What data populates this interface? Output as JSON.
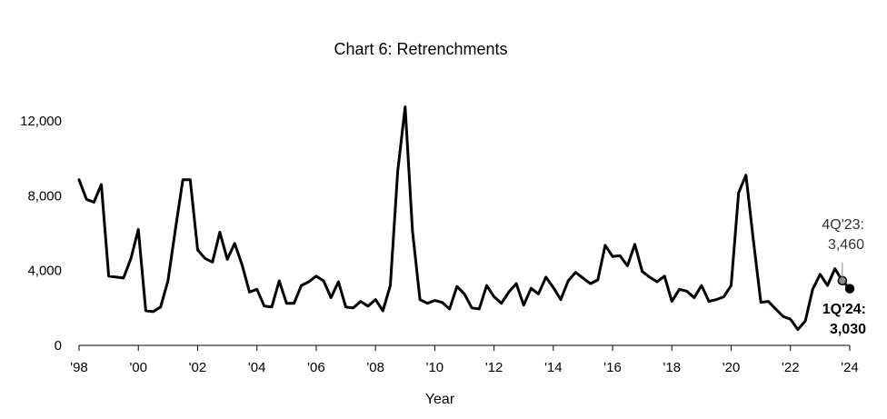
{
  "chart_data": {
    "type": "line",
    "title": "Chart 6: Retrenchments",
    "xlabel": "Year",
    "ylabel": "",
    "ylim": [
      0,
      12000
    ],
    "y_ticks": [
      "0",
      "4,000",
      "8,000",
      "12,000"
    ],
    "y_tick_values": [
      0,
      4000,
      8000,
      12000
    ],
    "x_ticks": [
      "'98",
      "'00",
      "'02",
      "'04",
      "'06",
      "'08",
      "'10",
      "'12",
      "'14",
      "'16",
      "'18",
      "'20",
      "'22",
      "'24"
    ],
    "x_tick_values": [
      1998,
      2000,
      2002,
      2004,
      2006,
      2008,
      2010,
      2012,
      2014,
      2016,
      2018,
      2020,
      2022,
      2024
    ],
    "grid": false,
    "line_color": "#000000",
    "series": [
      {
        "frequency": "quarterly",
        "start": "1Q'98",
        "values": [
          8850,
          7800,
          7650,
          8600,
          3700,
          3650,
          3600,
          4650,
          6200,
          1850,
          1800,
          2050,
          3450,
          6200,
          8850,
          8850,
          5100,
          4650,
          4450,
          6050,
          4600,
          5450,
          4300,
          2850,
          3000,
          2100,
          2050,
          3450,
          2250,
          2250,
          3200,
          3400,
          3700,
          3450,
          2550,
          3400,
          2050,
          2000,
          2350,
          2100,
          2450,
          1850,
          3200,
          9300,
          12750,
          6100,
          2450,
          2250,
          2400,
          2300,
          1950,
          3150,
          2750,
          2000,
          1950,
          3200,
          2600,
          2250,
          2850,
          3300,
          2150,
          3050,
          2750,
          3650,
          3100,
          2450,
          3450,
          3900,
          3600,
          3300,
          3500,
          5350,
          4750,
          4800,
          4250,
          5400,
          3950,
          3650,
          3400,
          3700,
          2350,
          3000,
          2900,
          2550,
          3200,
          2350,
          2450,
          2600,
          3200,
          8150,
          9100,
          5600,
          2300,
          2350,
          1950,
          1550,
          1400,
          850,
          1300,
          3000,
          3800,
          3200,
          4100,
          3460,
          3030
        ]
      }
    ],
    "annotations": [
      {
        "lines": [
          "4Q'23:",
          "3,460"
        ],
        "point": "4Q'23",
        "value": 3460,
        "bold": false,
        "color": "#8c8c8c"
      },
      {
        "lines": [
          "1Q'24:",
          "3,030"
        ],
        "point": "1Q'24",
        "value": 3030,
        "bold": true,
        "color": "#000000"
      }
    ]
  }
}
